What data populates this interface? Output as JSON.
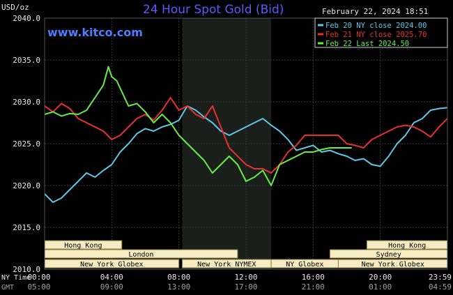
{
  "title": "24 Hour Spot Gold (Bid)",
  "unit": "USD/oz",
  "timestamp": "February 22, 2024 18:51",
  "watermark": "www.kitco.com",
  "colors": {
    "background": "#000000",
    "plot_bg": "#000000",
    "grid": "#3a3a3a",
    "title": "#5a5aff",
    "watermark": "#4d7dff",
    "shade": "#1b1f1b",
    "axis_text": "#e8e8e8",
    "gmt_text": "#a0a0a0",
    "session_bg": "#f5ecc4",
    "session_border": "#8a7d45",
    "session_text": "#000000",
    "legend_border": "#d0d0d0"
  },
  "legend": [
    {
      "label": "Feb 20 NY close 2024.00",
      "color": "#5ec8e8"
    },
    {
      "label": "Feb 21 NY close 2025.70",
      "color": "#e83030"
    },
    {
      "label": "Feb 22 Last 2024.50",
      "color": "#66ee44"
    }
  ],
  "x_axis": {
    "row1_label": "NY Time",
    "row2_label": "GMT",
    "ny_ticks": [
      "00:00",
      "04:00",
      "08:00",
      "12:00",
      "16:00",
      "20:00",
      "23:59"
    ],
    "gmt_ticks": [
      "05:00",
      "09:00",
      "13:00",
      "17:00",
      "21:00",
      "01:00",
      "04:59"
    ],
    "tick_hours": [
      0,
      4,
      8,
      12,
      16,
      20,
      24
    ]
  },
  "sessions": [
    {
      "label": "Hong Kong",
      "start": 0,
      "end": 4.6,
      "row": 0
    },
    {
      "label": "Hong Kong",
      "start": 19.2,
      "end": 24,
      "row": 0
    },
    {
      "label": "London",
      "start": 0,
      "end": 11.5,
      "row": 1
    },
    {
      "label": "Sydney",
      "start": 17,
      "end": 24,
      "row": 1
    },
    {
      "label": "New York Globex",
      "start": 0,
      "end": 8.0,
      "row": 2
    },
    {
      "label": "New York NYMEX",
      "start": 8.2,
      "end": 13.5,
      "row": 2
    },
    {
      "label": "NY Globex",
      "start": 13.5,
      "end": 17.5,
      "row": 2
    },
    {
      "label": "New York Globex",
      "start": 17.5,
      "end": 24,
      "row": 2
    }
  ],
  "chart_data": {
    "type": "line",
    "title": "24 Hour Spot Gold (Bid)",
    "ylabel": "USD/oz",
    "xlabel": "NY Time / GMT",
    "ylim": [
      2010,
      2040
    ],
    "xlim": [
      0,
      24
    ],
    "y_ticks": [
      2010.0,
      2015.0,
      2020.0,
      2025.0,
      2030.0,
      2035.0,
      2040.0
    ],
    "grid": true,
    "legend_position": "top-right",
    "shaded_region_hours": [
      8.2,
      13.5
    ],
    "series": [
      {
        "name": "Feb 20 NY close 2024.00",
        "color": "#5ec8e8",
        "x": [
          0,
          0.5,
          1,
          1.5,
          2,
          2.5,
          3,
          3.5,
          4,
          4.5,
          5,
          5.5,
          6,
          6.5,
          7,
          7.5,
          8,
          8.5,
          9,
          9.5,
          10,
          10.5,
          11,
          11.5,
          12,
          12.5,
          13,
          13.5,
          14,
          14.5,
          15,
          15.5,
          16,
          16.5,
          17,
          17.5,
          18,
          18.5,
          19,
          19.5,
          20,
          20.5,
          21,
          21.5,
          22,
          22.5,
          23,
          23.5,
          24
        ],
        "y": [
          2019.0,
          2018.0,
          2018.5,
          2019.5,
          2020.5,
          2021.5,
          2021.0,
          2021.8,
          2022.5,
          2024.0,
          2025.0,
          2026.2,
          2026.8,
          2026.5,
          2027.0,
          2027.3,
          2027.8,
          2029.5,
          2029.0,
          2028.2,
          2027.5,
          2026.5,
          2026.0,
          2026.5,
          2027.0,
          2027.5,
          2028.0,
          2027.2,
          2026.5,
          2025.5,
          2024.2,
          2024.5,
          2024.8,
          2024.0,
          2024.2,
          2023.8,
          2023.5,
          2023.0,
          2023.2,
          2022.5,
          2022.3,
          2023.5,
          2025.0,
          2026.0,
          2027.5,
          2028.0,
          2029.0,
          2029.2,
          2029.3
        ]
      },
      {
        "name": "Feb 21 NY close 2025.70",
        "color": "#e83030",
        "x": [
          0,
          0.5,
          1,
          1.5,
          2,
          2.5,
          3,
          3.5,
          4,
          4.5,
          5,
          5.5,
          6,
          6.5,
          7,
          7.5,
          8,
          8.5,
          9,
          9.5,
          10,
          10.5,
          11,
          11.5,
          12,
          12.5,
          13,
          13.5,
          14,
          14.5,
          15,
          15.5,
          16,
          16.5,
          17,
          17.5,
          18,
          18.5,
          19,
          19.5,
          20,
          20.5,
          21,
          21.5,
          22,
          22.5,
          23,
          23.5,
          24
        ],
        "y": [
          2029.5,
          2028.8,
          2029.8,
          2029.2,
          2028.0,
          2027.5,
          2027.0,
          2026.5,
          2025.5,
          2026.0,
          2027.0,
          2028.0,
          2028.5,
          2027.8,
          2029.0,
          2030.5,
          2029.0,
          2029.5,
          2028.5,
          2028.0,
          2029.5,
          2027.0,
          2024.5,
          2023.5,
          2022.5,
          2022.0,
          2022.0,
          2021.5,
          2022.5,
          2024.0,
          2024.8,
          2026.0,
          2026.0,
          2026.0,
          2026.0,
          2026.0,
          2025.0,
          2024.8,
          2024.5,
          2025.5,
          2026.0,
          2026.5,
          2027.0,
          2027.2,
          2027.0,
          2026.5,
          2025.8,
          2027.0,
          2028.0
        ]
      },
      {
        "name": "Feb 22 Last 2024.50",
        "color": "#66ee44",
        "x": [
          0,
          0.5,
          1,
          1.5,
          2,
          2.5,
          3,
          3.5,
          3.8,
          4,
          4.3,
          4.6,
          5,
          5.5,
          6,
          6.5,
          7,
          7.5,
          8,
          8.5,
          9,
          9.5,
          10,
          10.5,
          11,
          11.5,
          12,
          12.5,
          13,
          13.5,
          14,
          14.5,
          15,
          15.5,
          16,
          16.5,
          17,
          17.5,
          18,
          18.3
        ],
        "y": [
          2028.5,
          2028.8,
          2028.3,
          2028.6,
          2028.5,
          2029.0,
          2030.5,
          2032.0,
          2034.2,
          2033.0,
          2032.5,
          2031.2,
          2029.5,
          2029.8,
          2028.8,
          2027.5,
          2028.5,
          2027.5,
          2026.0,
          2025.0,
          2024.0,
          2023.0,
          2021.5,
          2022.5,
          2023.5,
          2022.5,
          2020.5,
          2021.0,
          2021.8,
          2020.0,
          2022.5,
          2023.0,
          2023.5,
          2024.0,
          2024.0,
          2024.3,
          2024.5,
          2024.5,
          2024.5,
          2024.5
        ]
      }
    ]
  }
}
